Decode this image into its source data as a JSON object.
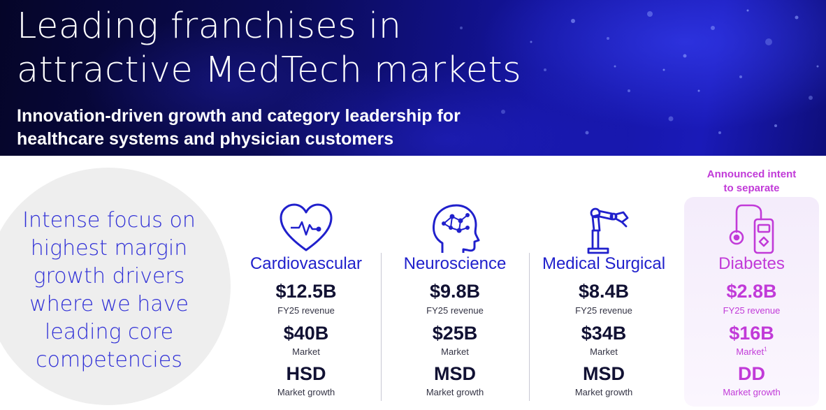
{
  "header": {
    "title_lines": [
      "Leading franchises in",
      "attractive MedTech markets"
    ],
    "subtitle_lines": [
      "Innovation-driven growth and category leadership for",
      "healthcare systems and physician customers"
    ]
  },
  "focus": {
    "lines": [
      "Intense focus on",
      "highest margin",
      "growth drivers",
      "where we have",
      "leading core",
      "competencies"
    ]
  },
  "colors": {
    "accent_blue": "#2020cc",
    "accent_pink": "#c13ad8",
    "banner_dark": "#0b0b57"
  },
  "franchises": [
    {
      "name": "Cardiovascular",
      "icon": "heart-rate-icon",
      "revenue": "$12.5B",
      "revenue_label": "FY25 revenue",
      "market": "$40B",
      "market_label": "Market",
      "growth": "HSD",
      "growth_label": "Market growth"
    },
    {
      "name": "Neuroscience",
      "icon": "brain-head-icon",
      "revenue": "$9.8B",
      "revenue_label": "FY25 revenue",
      "market": "$25B",
      "market_label": "Market",
      "growth": "MSD",
      "growth_label": "Market growth"
    },
    {
      "name": "Medical Surgical",
      "icon": "robotic-arm-icon",
      "revenue": "$8.4B",
      "revenue_label": "FY25 revenue",
      "market": "$34B",
      "market_label": "Market",
      "growth": "MSD",
      "growth_label": "Market growth"
    },
    {
      "name": "Diabetes",
      "icon": "insulin-pump-icon",
      "revenue": "$2.8B",
      "revenue_label": "FY25 revenue",
      "market": "$16B",
      "market_label": "Market",
      "market_footnote": "1",
      "growth": "DD",
      "growth_label": "Market growth"
    }
  ],
  "diabetes_note": {
    "lines": [
      "Announced intent",
      "to separate"
    ]
  }
}
